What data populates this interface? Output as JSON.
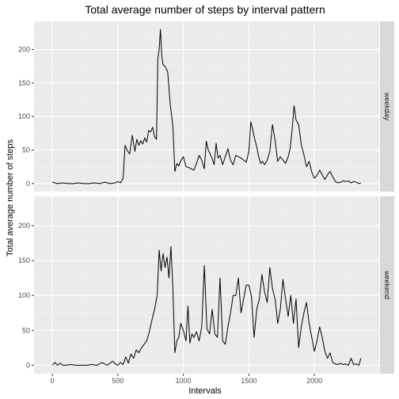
{
  "chart_data": {
    "type": "line",
    "title": "Total average number of steps by interval pattern",
    "xlabel": "Intervals",
    "ylabel": "Total average number of steps",
    "xlim": [
      -140,
      2495
    ],
    "ylim": [
      -12,
      242
    ],
    "x_ticks": [
      0,
      500,
      1000,
      1500,
      2000
    ],
    "y_ticks": [
      0,
      50,
      100,
      150,
      200
    ],
    "grid": true,
    "colors": {
      "panel_bg": "#ebebeb",
      "grid_major": "#ffffff",
      "strip_bg": "#d9d9d9",
      "line": "#000000"
    },
    "panels": [
      {
        "label": "weekday",
        "series": {
          "x": [
            0,
            40,
            80,
            120,
            160,
            200,
            240,
            280,
            320,
            360,
            400,
            440,
            480,
            500,
            520,
            540,
            555,
            570,
            590,
            610,
            630,
            645,
            660,
            675,
            690,
            705,
            720,
            735,
            750,
            765,
            780,
            795,
            805,
            815,
            825,
            835,
            845,
            860,
            880,
            900,
            920,
            935,
            950,
            965,
            980,
            1000,
            1020,
            1040,
            1060,
            1080,
            1100,
            1120,
            1140,
            1160,
            1175,
            1190,
            1205,
            1220,
            1235,
            1250,
            1265,
            1280,
            1300,
            1320,
            1340,
            1360,
            1380,
            1400,
            1420,
            1440,
            1460,
            1480,
            1500,
            1515,
            1530,
            1545,
            1560,
            1575,
            1590,
            1605,
            1620,
            1640,
            1660,
            1680,
            1700,
            1720,
            1740,
            1760,
            1780,
            1800,
            1815,
            1830,
            1845,
            1860,
            1880,
            1900,
            1920,
            1940,
            1960,
            1980,
            2000,
            2020,
            2040,
            2060,
            2080,
            2100,
            2120,
            2140,
            2160,
            2180,
            2200,
            2220,
            2240,
            2260,
            2280,
            2300,
            2320,
            2340,
            2355
          ],
          "y": [
            2,
            0,
            1,
            0,
            0,
            1,
            0,
            0,
            1,
            0,
            2,
            0,
            1,
            3,
            1,
            8,
            57,
            50,
            44,
            72,
            48,
            66,
            57,
            64,
            59,
            68,
            62,
            79,
            77,
            84,
            70,
            66,
            186,
            200,
            230,
            190,
            177,
            175,
            167,
            118,
            85,
            18,
            30,
            26,
            34,
            40,
            25,
            24,
            22,
            20,
            30,
            42,
            35,
            22,
            63,
            50,
            44,
            37,
            28,
            60,
            38,
            42,
            28,
            40,
            52,
            35,
            28,
            42,
            40,
            38,
            35,
            32,
            48,
            92,
            80,
            66,
            55,
            40,
            30,
            33,
            28,
            35,
            48,
            88,
            65,
            33,
            40,
            35,
            30,
            40,
            52,
            80,
            116,
            95,
            88,
            58,
            43,
            25,
            33,
            17,
            8,
            12,
            20,
            13,
            6,
            13,
            18,
            10,
            3,
            1,
            2,
            4,
            3,
            4,
            1,
            3,
            2,
            0,
            1
          ]
        }
      },
      {
        "label": "weekend",
        "series": {
          "x": [
            0,
            20,
            40,
            60,
            80,
            100,
            140,
            180,
            220,
            260,
            300,
            340,
            380,
            420,
            460,
            480,
            500,
            520,
            540,
            560,
            580,
            600,
            620,
            640,
            660,
            680,
            700,
            720,
            740,
            760,
            780,
            800,
            815,
            830,
            845,
            860,
            875,
            890,
            905,
            920,
            935,
            950,
            965,
            980,
            1000,
            1020,
            1035,
            1050,
            1065,
            1080,
            1100,
            1120,
            1140,
            1160,
            1180,
            1200,
            1220,
            1240,
            1260,
            1280,
            1300,
            1320,
            1340,
            1360,
            1380,
            1400,
            1420,
            1440,
            1460,
            1480,
            1500,
            1520,
            1540,
            1560,
            1580,
            1600,
            1620,
            1640,
            1660,
            1680,
            1700,
            1720,
            1740,
            1760,
            1780,
            1800,
            1820,
            1840,
            1860,
            1880,
            1900,
            1920,
            1940,
            1960,
            1980,
            2000,
            2020,
            2040,
            2060,
            2080,
            2100,
            2120,
            2140,
            2160,
            2180,
            2200,
            2220,
            2240,
            2260,
            2280,
            2300,
            2320,
            2340,
            2355
          ],
          "y": [
            0,
            4,
            0,
            3,
            0,
            0,
            1,
            0,
            0,
            0,
            1,
            0,
            4,
            0,
            6,
            2,
            0,
            4,
            1,
            12,
            3,
            16,
            10,
            22,
            18,
            25,
            30,
            35,
            48,
            65,
            80,
            100,
            165,
            135,
            160,
            140,
            155,
            125,
            170,
            110,
            18,
            35,
            40,
            60,
            50,
            35,
            85,
            32,
            45,
            40,
            48,
            35,
            55,
            143,
            52,
            45,
            80,
            45,
            40,
            125,
            35,
            30,
            55,
            75,
            100,
            100,
            125,
            75,
            95,
            115,
            115,
            98,
            40,
            80,
            95,
            130,
            105,
            90,
            140,
            110,
            95,
            60,
            80,
            123,
            95,
            70,
            100,
            60,
            95,
            25,
            55,
            75,
            90,
            60,
            40,
            20,
            35,
            55,
            40,
            20,
            10,
            18,
            4,
            2,
            1,
            3,
            1,
            2,
            0,
            10,
            1,
            2,
            0,
            10
          ]
        }
      }
    ]
  }
}
